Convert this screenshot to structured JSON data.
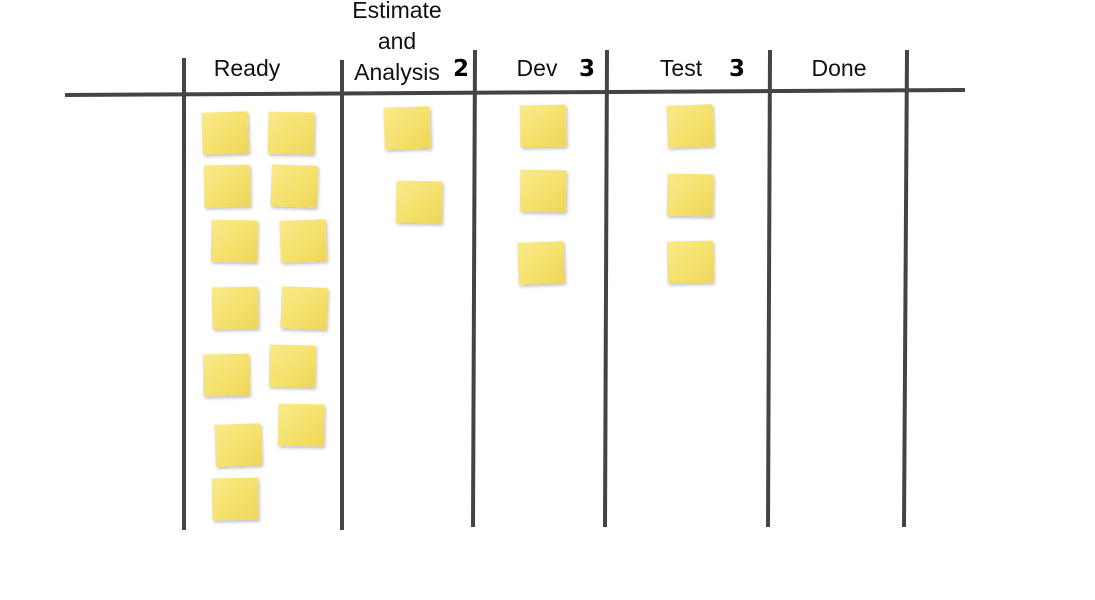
{
  "board": {
    "columns": [
      {
        "title": "Ready"
      },
      {
        "title": "Estimate and Analysis",
        "limit": 2
      },
      {
        "title": "Dev",
        "limit": 3
      },
      {
        "title": "Test",
        "limit": 3
      },
      {
        "title": "Done"
      }
    ]
  }
}
